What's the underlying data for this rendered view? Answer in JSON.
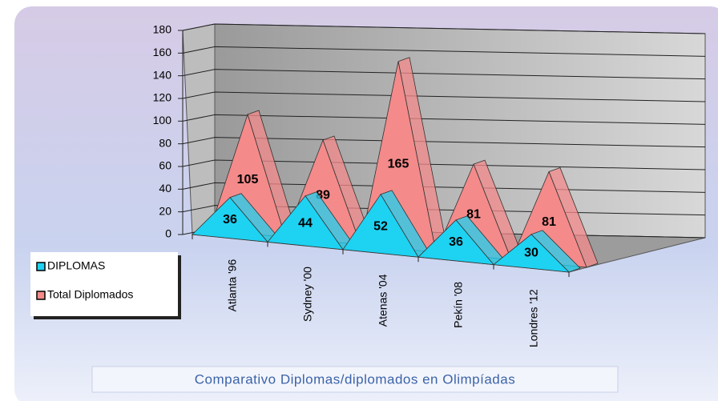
{
  "chart_data": {
    "type": "pyramid",
    "caption": "Comparativo Diplomas/diplomados en Olimpíadas",
    "categories": [
      "Atlanta '96",
      "Sydney '00",
      "Atenas '04",
      "Pekín '08",
      "Londres '12"
    ],
    "series": [
      {
        "name": "DIPLOMAS",
        "color": "#1ed2f2",
        "values": [
          36,
          44,
          52,
          36,
          30
        ]
      },
      {
        "name": "Total Diplomados",
        "color": "#f48a8a",
        "values": [
          105,
          89,
          165,
          81,
          81
        ]
      }
    ],
    "ylim": [
      0,
      180
    ],
    "yticks": [
      0,
      20,
      40,
      60,
      80,
      100,
      120,
      140,
      160,
      180
    ],
    "grid": true,
    "legend": "bottom-left"
  }
}
